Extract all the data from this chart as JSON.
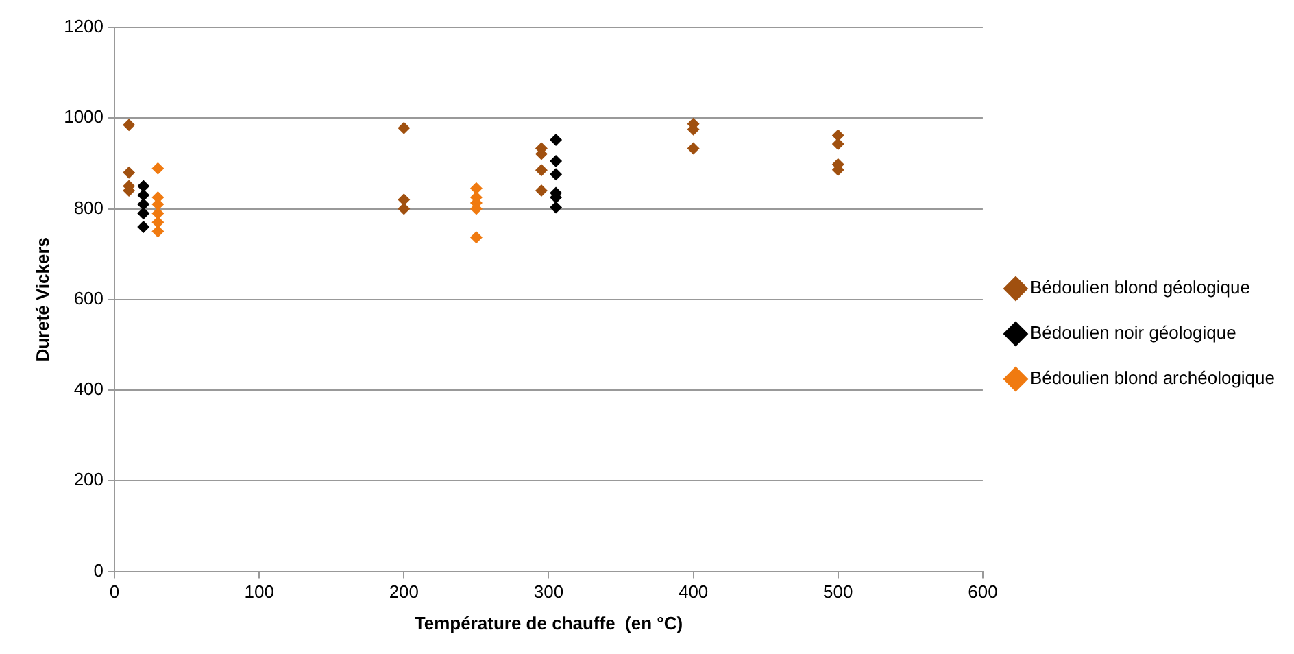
{
  "chart_data": {
    "type": "scatter",
    "xlabel": "Température de chauffe  (en °C)",
    "ylabel": "Dureté Vickers",
    "xlim": [
      0,
      600
    ],
    "xticks": [
      0,
      100,
      200,
      300,
      400,
      500,
      600
    ],
    "ylim": [
      0,
      1200
    ],
    "yticks": [
      0,
      200,
      400,
      600,
      800,
      1000,
      1200
    ],
    "grid": "y",
    "legend": "right",
    "marker": "diamond",
    "series": [
      {
        "name": "Bédoulien blond géologique",
        "color": "#a0500f",
        "x": [
          10,
          10,
          10,
          10,
          200,
          200,
          200,
          295,
          295,
          295,
          295,
          400,
          400,
          400,
          500,
          500,
          500,
          500
        ],
        "values": [
          985,
          880,
          850,
          840,
          978,
          820,
          800,
          933,
          921,
          885,
          840,
          987,
          975,
          933,
          886,
          962,
          943,
          898
        ]
      },
      {
        "name": "Bédoulien noir géologique",
        "color": "#000000",
        "x": [
          20,
          20,
          20,
          20,
          20,
          305,
          305,
          305,
          305,
          305,
          305
        ],
        "values": [
          850,
          830,
          810,
          790,
          760,
          952,
          905,
          876,
          835,
          825,
          803
        ]
      },
      {
        "name": "Bédoulien blond archéologique",
        "color": "#f07a10",
        "x": [
          30,
          30,
          30,
          30,
          30,
          30,
          250,
          250,
          250,
          250,
          250
        ],
        "values": [
          889,
          825,
          810,
          790,
          770,
          750,
          845,
          825,
          813,
          800,
          737
        ]
      }
    ]
  }
}
